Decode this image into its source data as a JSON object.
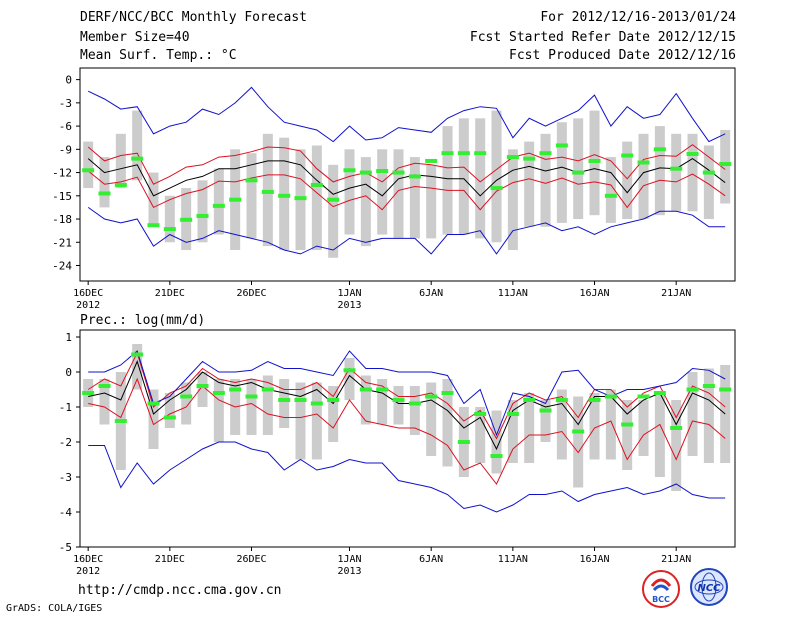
{
  "header": {
    "title": "DERF/NCC/BCC Monthly Forecast",
    "member_size": "Member Size=40",
    "variable_top": "Mean Surf. Temp.: °C",
    "period": "For 2012/12/16-2013/01/24",
    "started": "Fcst Started Refer Date 2012/12/15",
    "produced": "Fcst Produced Date 2012/12/16"
  },
  "footer": {
    "url": "http://cmdp.ncc.cma.gov.cn",
    "credit": "GrADS: COLA/IGES",
    "logo_bcc": "BCC",
    "logo_ncc": "NCC"
  },
  "colors": {
    "box": "#cccccc",
    "green": "#33ee33",
    "red": "#dd1122",
    "blue": "#1111cc",
    "black": "#000000"
  },
  "chart_data": [
    {
      "type": "line",
      "title": "Mean Surf. Temp.: °C",
      "ylim": [
        -26,
        1.5
      ],
      "yticks": [
        0,
        -3,
        -6,
        -9,
        -12,
        -15,
        -18,
        -21,
        -24
      ],
      "xlim": [
        -0.5,
        39.6
      ],
      "xticks": [
        {
          "x": 0,
          "label": "16DEC",
          "sub": "2012"
        },
        {
          "x": 5,
          "label": "21DEC",
          "sub": ""
        },
        {
          "x": 10,
          "label": "26DEC",
          "sub": ""
        },
        {
          "x": 16,
          "label": "1JAN",
          "sub": "2013"
        },
        {
          "x": 21,
          "label": "6JAN",
          "sub": ""
        },
        {
          "x": 26,
          "label": "11JAN",
          "sub": ""
        },
        {
          "x": 31,
          "label": "16JAN",
          "sub": ""
        },
        {
          "x": 36,
          "label": "21JAN",
          "sub": ""
        }
      ],
      "box_low": [
        -14,
        -16.5,
        -14,
        -13,
        -19,
        -21,
        -22,
        -21,
        -20,
        -22,
        -20.5,
        -21.5,
        -22,
        -22,
        -22,
        -23,
        -20,
        -21.5,
        -20,
        -20.5,
        -20.5,
        -20.5,
        -20,
        -20,
        -20.5,
        -21,
        -22,
        -19,
        -19,
        -18.5,
        -18,
        -17.5,
        -18.5,
        -18,
        -18,
        -17.5,
        -17,
        -17,
        -18,
        -16
      ],
      "box_high": [
        -8,
        -10,
        -7,
        -4,
        -12,
        -15,
        -14,
        -13,
        -11.5,
        -9,
        -9.5,
        -7,
        -7.5,
        -9,
        -8.5,
        -11,
        -9,
        -10,
        -9,
        -9,
        -10,
        -11,
        -6,
        -5,
        -5,
        -4,
        -9,
        -8,
        -7,
        -5.5,
        -5,
        -4,
        -10,
        -8,
        -7,
        -6,
        -7,
        -7,
        -8.5,
        -6.5
      ],
      "green": [
        -11.7,
        -14.7,
        -13.6,
        -10.2,
        -18.8,
        -19.3,
        -18.1,
        -17.6,
        -16.3,
        -15.5,
        -13,
        -14.5,
        -15,
        -15.3,
        -13.6,
        -15.5,
        -11.7,
        -12,
        -11.8,
        -12,
        -12.5,
        -10.5,
        -9.5,
        -9.5,
        -9.5,
        -14,
        -10,
        -10.2,
        -9.5,
        -8.5,
        -12,
        -10.5,
        -15,
        -9.8,
        -10.7,
        -9,
        -11.5,
        -9.6,
        -12,
        -10.9
      ],
      "series": [
        {
          "name": "mean",
          "color": "black",
          "values": [
            -10.2,
            -12,
            -11.5,
            -11,
            -15,
            -14,
            -13,
            -12.5,
            -11.5,
            -11.5,
            -11,
            -10.5,
            -10.5,
            -11,
            -13,
            -14.8,
            -14,
            -13.5,
            -15,
            -12.8,
            -12.3,
            -12.5,
            -12.8,
            -12.8,
            -15,
            -13,
            -11.7,
            -11.2,
            -11.8,
            -11.3,
            -12,
            -11.5,
            -12,
            -14.6,
            -12,
            -11.4,
            -11.5,
            -10.2,
            -11.7,
            -13.3
          ]
        },
        {
          "name": "mean_plus_sd",
          "color": "red",
          "values": [
            -8.7,
            -10.5,
            -9.8,
            -9.5,
            -13.5,
            -12.5,
            -11.3,
            -11,
            -10,
            -9.8,
            -9.3,
            -8.7,
            -8.8,
            -9.2,
            -11.5,
            -13.2,
            -12.5,
            -12,
            -13.2,
            -11.4,
            -10.8,
            -11,
            -11.4,
            -11.3,
            -13.2,
            -11.6,
            -10,
            -9.5,
            -10.3,
            -10,
            -10.5,
            -9.7,
            -10.5,
            -12.8,
            -10.3,
            -9.8,
            -9.9,
            -8.4,
            -10,
            -11.6
          ]
        },
        {
          "name": "mean_minus_sd",
          "color": "red",
          "values": [
            -11.8,
            -13.5,
            -13.2,
            -12.6,
            -16.5,
            -15.5,
            -14.7,
            -14.2,
            -13.1,
            -13.2,
            -12.7,
            -12.3,
            -12.3,
            -12.8,
            -14.6,
            -16.4,
            -15.6,
            -15,
            -16.8,
            -14.3,
            -13.8,
            -14,
            -14.3,
            -14.3,
            -16.8,
            -14.4,
            -13.3,
            -12.8,
            -13.4,
            -12.7,
            -13.5,
            -13.2,
            -13.6,
            -16.5,
            -13.7,
            -13,
            -13.2,
            -12.2,
            -13.5,
            -15
          ]
        },
        {
          "name": "max",
          "color": "blue",
          "values": [
            -1.5,
            -2.5,
            -3.8,
            -3.5,
            -7,
            -6,
            -5.5,
            -3.8,
            -4.5,
            -3,
            -1,
            -3.5,
            -5.5,
            -6,
            -6.5,
            -8,
            -6,
            -7.8,
            -7.5,
            -6.2,
            -6.5,
            -6.8,
            -5,
            -4,
            -3.5,
            -3.7,
            -7.5,
            -5,
            -6,
            -5,
            -4,
            -2,
            -6,
            -3.5,
            -5,
            -4.5,
            -1.8,
            -5,
            -8,
            -7
          ]
        },
        {
          "name": "min",
          "color": "blue",
          "values": [
            -16.5,
            -18,
            -18.5,
            -18,
            -21.5,
            -20,
            -21,
            -20.5,
            -19.5,
            -20,
            -20.5,
            -21,
            -22,
            -22.5,
            -21.5,
            -22,
            -20.5,
            -21,
            -20.5,
            -20.5,
            -20.5,
            -22.5,
            -20,
            -20,
            -19.5,
            -22.5,
            -19.5,
            -19,
            -18.5,
            -19.5,
            -19,
            -20,
            -19,
            -18.5,
            -18,
            -17,
            -17,
            -17.5,
            -19,
            -19
          ]
        }
      ]
    },
    {
      "type": "line",
      "title": "Prec.: log(mm/d)",
      "ylim": [
        -5,
        1.2
      ],
      "yticks": [
        1,
        0,
        -1,
        -2,
        -3,
        -4,
        -5
      ],
      "xlim": [
        -0.5,
        39.6
      ],
      "xticks": [
        {
          "x": 0,
          "label": "16DEC",
          "sub": "2012"
        },
        {
          "x": 5,
          "label": "21DEC",
          "sub": ""
        },
        {
          "x": 10,
          "label": "26DEC",
          "sub": ""
        },
        {
          "x": 16,
          "label": "1JAN",
          "sub": "2013"
        },
        {
          "x": 21,
          "label": "6JAN",
          "sub": ""
        },
        {
          "x": 26,
          "label": "11JAN",
          "sub": ""
        },
        {
          "x": 31,
          "label": "16JAN",
          "sub": ""
        },
        {
          "x": 36,
          "label": "21JAN",
          "sub": ""
        }
      ],
      "box_low": [
        -1,
        -1.5,
        -2.8,
        -0.5,
        -2.2,
        -1.6,
        -1.5,
        -1,
        -2,
        -1.8,
        -1.8,
        -1.8,
        -1.6,
        -2.5,
        -2.5,
        -2,
        -0.8,
        -1.5,
        -1.5,
        -1.5,
        -1.8,
        -2.4,
        -2.7,
        -3,
        -2.6,
        -2.9,
        -2.6,
        -2.6,
        -2,
        -2.5,
        -3.3,
        -2.5,
        -2.5,
        -2.8,
        -2.4,
        -3,
        -3.4,
        -2.4,
        -2.6,
        -2.6
      ],
      "box_high": [
        -0.2,
        -0.2,
        0,
        0.8,
        -0.5,
        -0.6,
        -0.3,
        0,
        -0.2,
        -0.2,
        -0.2,
        -0.1,
        -0.2,
        -0.3,
        -0.3,
        -0.4,
        0.4,
        -0.1,
        -0.2,
        -0.4,
        -0.4,
        -0.3,
        -0.2,
        -1,
        -1,
        -1.1,
        -0.8,
        -0.6,
        -0.8,
        -0.5,
        -0.7,
        -0.6,
        -0.5,
        -0.8,
        -0.8,
        -0.6,
        -0.8,
        0,
        0.1,
        0.2
      ],
      "green": [
        -0.6,
        -0.4,
        -1.4,
        0.5,
        -0.9,
        -1.3,
        -0.7,
        -0.4,
        -0.6,
        -0.5,
        -0.7,
        -0.5,
        -0.8,
        -0.8,
        -0.9,
        -0.8,
        0.05,
        -0.5,
        -0.5,
        -0.8,
        -0.9,
        -0.7,
        -0.6,
        -2,
        -1.2,
        -2.4,
        -1.2,
        -0.8,
        -1.1,
        -0.8,
        -1.7,
        -0.8,
        -0.7,
        -1.5,
        -0.7,
        -0.6,
        -1.6,
        -0.5,
        -0.4,
        -0.5
      ],
      "series": [
        {
          "name": "mean",
          "color": "black",
          "values": [
            -0.7,
            -0.6,
            -0.8,
            0.3,
            -1.2,
            -0.8,
            -0.5,
            0,
            -0.3,
            -0.4,
            -0.3,
            -0.5,
            -0.6,
            -0.7,
            -0.5,
            -0.9,
            -0.1,
            -0.5,
            -0.6,
            -0.9,
            -0.9,
            -0.8,
            -1.1,
            -1.6,
            -1.3,
            -2.2,
            -1.1,
            -0.8,
            -1,
            -0.9,
            -1.5,
            -0.7,
            -0.7,
            -1.2,
            -0.8,
            -0.6,
            -1.5,
            -0.6,
            -0.8,
            -1.2
          ]
        },
        {
          "name": "mean_plus_sd",
          "color": "red",
          "values": [
            -0.5,
            -0.2,
            -0.4,
            0.55,
            -1,
            -0.6,
            -0.4,
            0.1,
            -0.2,
            -0.3,
            -0.2,
            -0.3,
            -0.5,
            -0.5,
            -0.3,
            -0.7,
            0.1,
            -0.3,
            -0.4,
            -0.7,
            -0.7,
            -0.6,
            -0.9,
            -1.4,
            -1.1,
            -1.9,
            -0.9,
            -0.6,
            -0.8,
            -0.7,
            -1.3,
            -0.5,
            -0.5,
            -1,
            -0.6,
            -0.4,
            -1.3,
            -0.4,
            -0.6,
            -1
          ]
        },
        {
          "name": "mean_minus_sd",
          "color": "red",
          "values": [
            -0.9,
            -1,
            -1.3,
            -0.2,
            -1.5,
            -1.2,
            -1,
            -0.4,
            -0.8,
            -1,
            -0.9,
            -1.2,
            -1.3,
            -1.3,
            -1.2,
            -1.6,
            -0.8,
            -1.4,
            -1.5,
            -1.6,
            -1.6,
            -1.8,
            -2.1,
            -2.8,
            -2.6,
            -3.2,
            -2.2,
            -1.8,
            -1.8,
            -1.7,
            -2.3,
            -1.6,
            -1.4,
            -2.5,
            -1.8,
            -1.5,
            -2.5,
            -1.4,
            -1.5,
            -1.9
          ]
        },
        {
          "name": "max",
          "color": "blue",
          "values": [
            0,
            0,
            0.2,
            0.6,
            -0.9,
            -0.7,
            -0.2,
            0.3,
            0,
            0,
            0.05,
            0.3,
            0.1,
            0.1,
            0,
            -0.1,
            0.6,
            0.1,
            0.1,
            0,
            0,
            0,
            -0.1,
            -0.9,
            -0.5,
            -1.8,
            -0.6,
            -0.7,
            -0.9,
            0,
            0.05,
            -0.5,
            -0.7,
            -0.5,
            -0.5,
            -0.4,
            -0.3,
            0.1,
            0.05,
            -0.2
          ]
        },
        {
          "name": "min",
          "color": "blue",
          "values": [
            -2.1,
            -2.1,
            -3.3,
            -2.6,
            -3.2,
            -2.8,
            -2.5,
            -2.2,
            -2,
            -2,
            -2.2,
            -2.3,
            -2.8,
            -2.5,
            -2.8,
            -2.7,
            -2.5,
            -2.6,
            -2.6,
            -3.1,
            -3.2,
            -3.3,
            -3.5,
            -3.9,
            -3.8,
            -4,
            -3.8,
            -3.5,
            -3.5,
            -3.4,
            -3.7,
            -3.5,
            -3.4,
            -3.3,
            -3.5,
            -3.4,
            -3.2,
            -3.5,
            -3.6,
            -3.6
          ]
        }
      ]
    }
  ]
}
